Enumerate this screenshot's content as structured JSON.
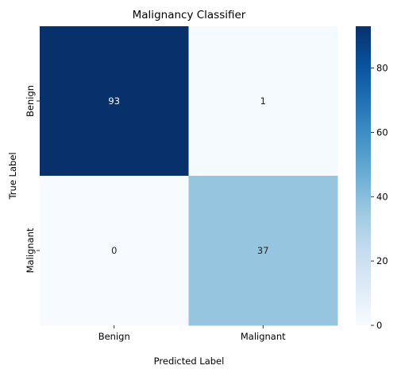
{
  "chart_data": {
    "type": "heatmap",
    "title": "Malignancy Classifier",
    "xlabel": "Predicted Label",
    "ylabel": "True Label",
    "x_categories": [
      "Benign",
      "Malignant"
    ],
    "y_categories": [
      "Benign",
      "Malignant"
    ],
    "values": [
      [
        93,
        1
      ],
      [
        0,
        37
      ]
    ],
    "colormap": "Blues",
    "color_range": [
      0,
      93
    ],
    "colorbar_ticks": [
      0,
      20,
      40,
      60,
      80
    ],
    "annotations": true
  }
}
